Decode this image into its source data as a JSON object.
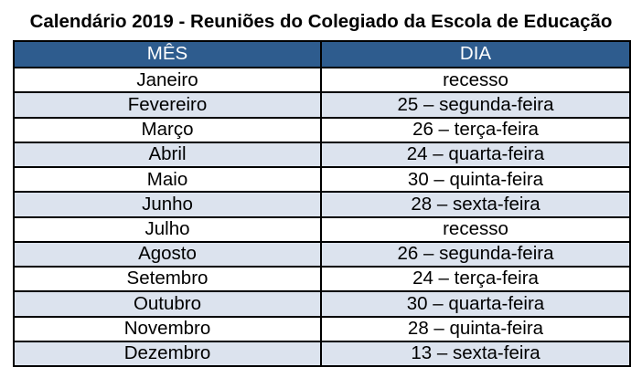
{
  "page": {
    "background_color": "#ffffff",
    "title": "Calendário 2019 - Reuniões do Colegiado da Escola de Educação"
  },
  "table": {
    "border_color": "#000000",
    "header": {
      "background_color": "#2e5c8e",
      "text_color": "#ffffff",
      "month_label": "MÊS",
      "day_label": "DIA"
    },
    "zebra": {
      "odd_row_background": "#ffffff",
      "even_row_background": "#dce3ee"
    },
    "rows": [
      {
        "month": "Janeiro",
        "day": "recesso"
      },
      {
        "month": "Fevereiro",
        "day": "25 – segunda-feira"
      },
      {
        "month": "Março",
        "day": "26 – terça-feira"
      },
      {
        "month": "Abril",
        "day": "24 – quarta-feira"
      },
      {
        "month": "Maio",
        "day": "30 – quinta-feira"
      },
      {
        "month": "Junho",
        "day": "28 – sexta-feira"
      },
      {
        "month": "Julho",
        "day": "recesso"
      },
      {
        "month": "Agosto",
        "day": "26 – segunda-feira"
      },
      {
        "month": "Setembro",
        "day": "24 – terça-feira"
      },
      {
        "month": "Outubro",
        "day": "30 – quarta-feira"
      },
      {
        "month": "Novembro",
        "day": "28 – quinta-feira"
      },
      {
        "month": "Dezembro",
        "day": "13 – sexta-feira"
      }
    ]
  }
}
